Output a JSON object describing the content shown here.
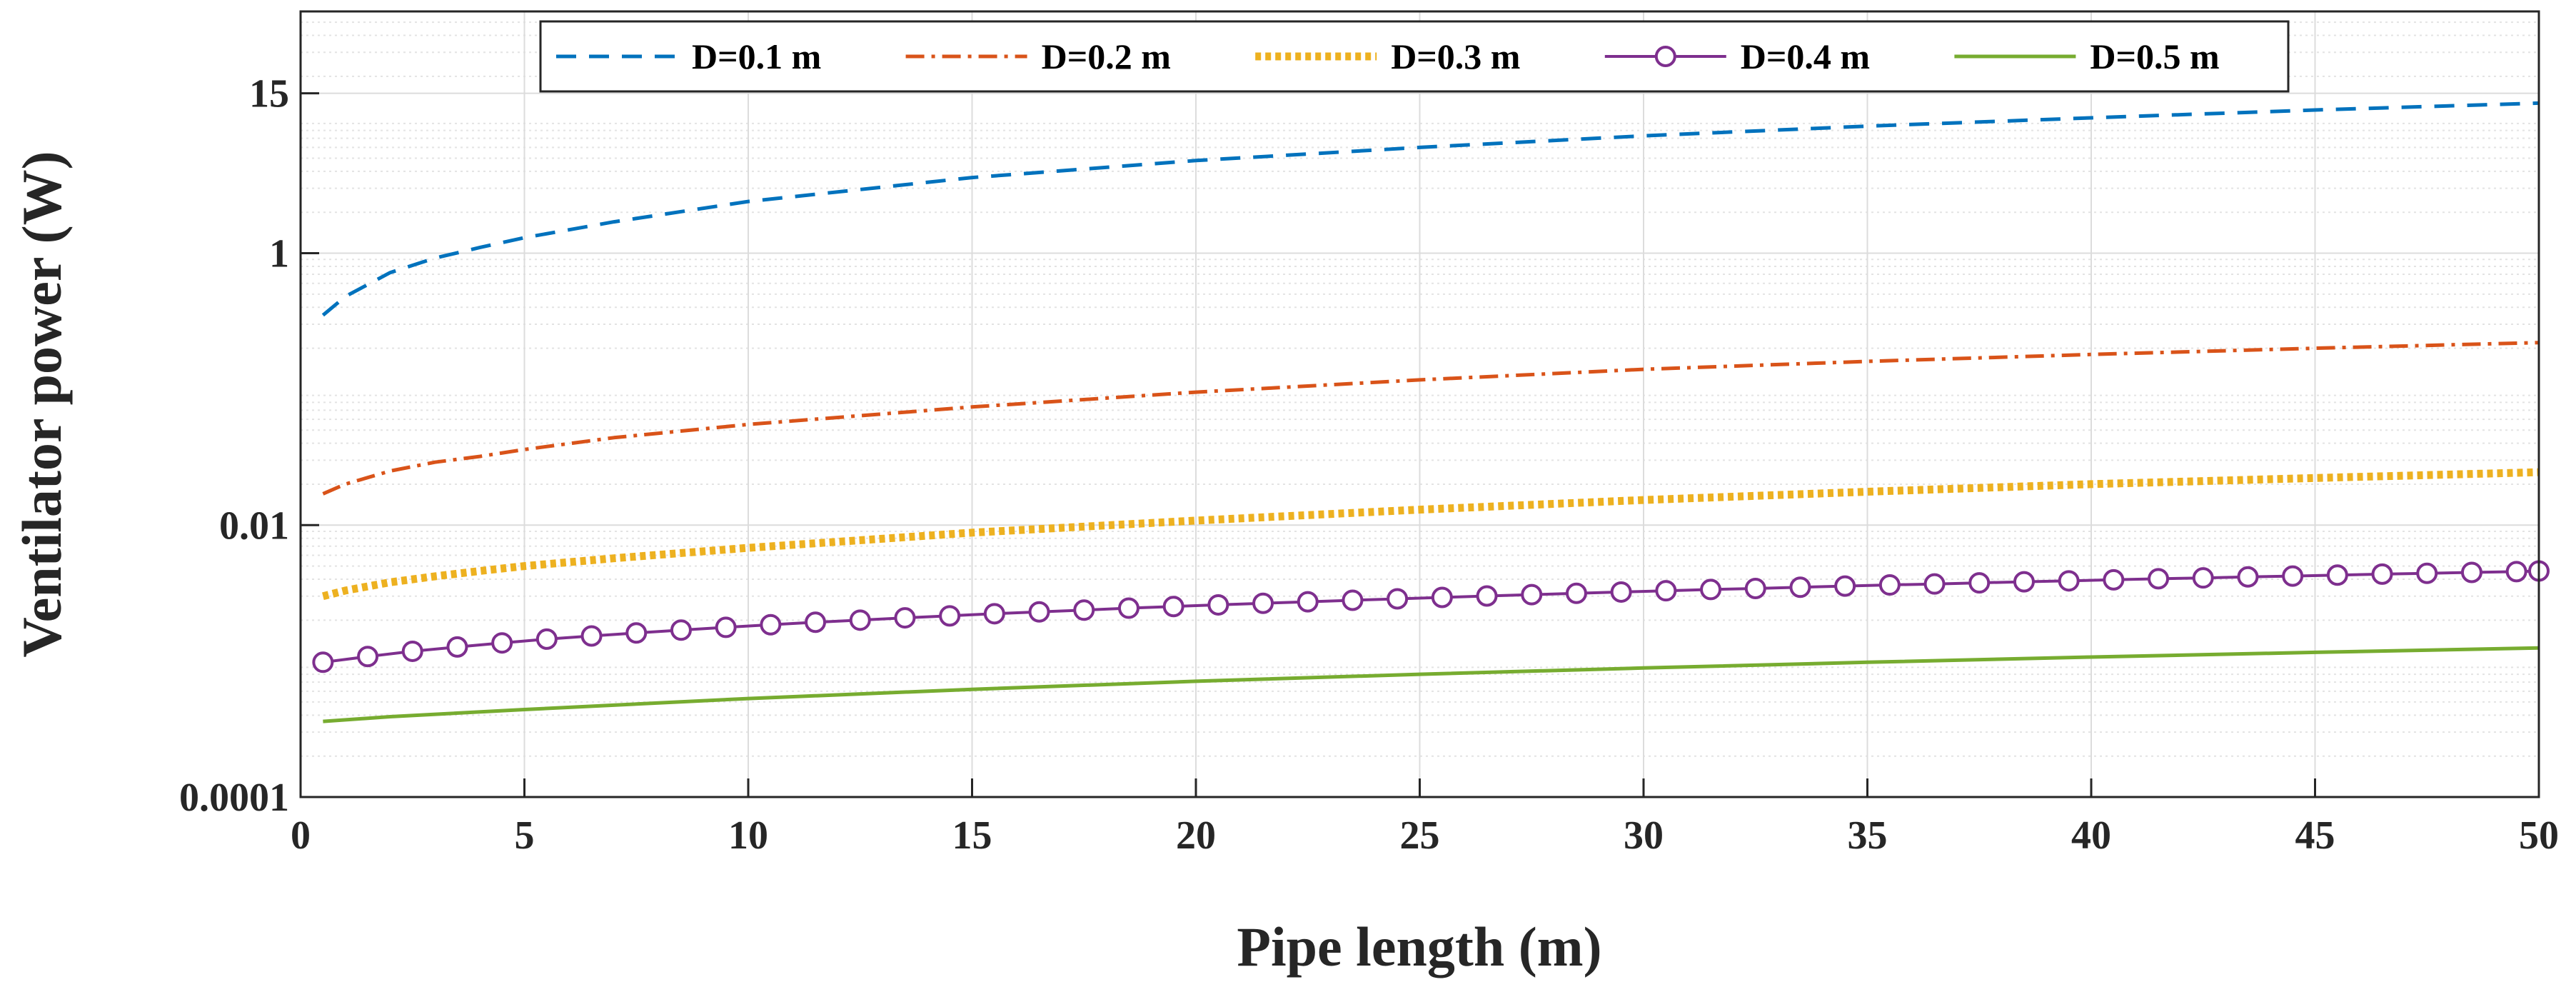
{
  "chart_data": {
    "type": "line",
    "xlabel": "Pipe length (m)",
    "ylabel": "Ventilator power (W)",
    "xlim": [
      0,
      50
    ],
    "ylim": [
      0.0001,
      60
    ],
    "yscale": "log",
    "grid": true,
    "legend_position": "top",
    "x_ticks": [
      0,
      5,
      10,
      15,
      20,
      25,
      30,
      35,
      40,
      45,
      50
    ],
    "x_tick_labels": [
      "0",
      "5",
      "10",
      "15",
      "20",
      "25",
      "30",
      "35",
      "40",
      "45",
      "50"
    ],
    "y_ticks": [
      0.0001,
      0.01,
      1,
      15
    ],
    "y_tick_labels": [
      "0.0001",
      "0.01",
      "1",
      "15"
    ],
    "series": [
      {
        "name": "D=0.1 m",
        "color": "#0072BD",
        "style": "dashed",
        "x": [
          0.5,
          1,
          2,
          3,
          4,
          5,
          7,
          10,
          15,
          20,
          25,
          30,
          35,
          40,
          45,
          50
        ],
        "values": [
          0.35,
          0.48,
          0.72,
          0.92,
          1.1,
          1.3,
          1.7,
          2.4,
          3.6,
          4.8,
          6.0,
          7.3,
          8.6,
          9.9,
          11.3,
          12.7
        ]
      },
      {
        "name": "D=0.2 m",
        "color": "#D95319",
        "style": "dashdot",
        "x": [
          0.5,
          1,
          2,
          3,
          4,
          5,
          7,
          10,
          15,
          20,
          25,
          30,
          35,
          40,
          45,
          50
        ],
        "values": [
          0.017,
          0.02,
          0.025,
          0.029,
          0.032,
          0.036,
          0.044,
          0.055,
          0.074,
          0.095,
          0.117,
          0.14,
          0.16,
          0.18,
          0.2,
          0.22
        ]
      },
      {
        "name": "D=0.3 m",
        "color": "#EDB120",
        "style": "dotted",
        "x": [
          0.5,
          1,
          2,
          3,
          4,
          5,
          7,
          10,
          15,
          20,
          25,
          30,
          35,
          40,
          45,
          50
        ],
        "values": [
          0.003,
          0.0033,
          0.0038,
          0.0042,
          0.0046,
          0.005,
          0.0057,
          0.0068,
          0.0088,
          0.0108,
          0.013,
          0.0153,
          0.0176,
          0.02,
          0.0222,
          0.0245
        ]
      },
      {
        "name": "D=0.4 m",
        "color": "#7E2F8E",
        "style": "solid-circle",
        "x": [
          0.5,
          1.5,
          2.5,
          3.5,
          4.5,
          5.5,
          6.5,
          7.5,
          8.5,
          9.5,
          10.5,
          11.5,
          12.5,
          13.5,
          14.5,
          15.5,
          16.5,
          17.5,
          18.5,
          19.5,
          20.5,
          21.5,
          22.5,
          23.5,
          24.5,
          25.5,
          26.5,
          27.5,
          28.5,
          29.5,
          30.5,
          31.5,
          32.5,
          33.5,
          34.5,
          35.5,
          36.5,
          37.5,
          38.5,
          39.5,
          40.5,
          41.5,
          42.5,
          43.5,
          44.5,
          45.5,
          46.5,
          47.5,
          48.5,
          49.5,
          50
        ],
        "values": [
          0.00098,
          0.00108,
          0.00118,
          0.00127,
          0.00136,
          0.00145,
          0.00153,
          0.00161,
          0.00169,
          0.00177,
          0.00185,
          0.00193,
          0.002,
          0.00208,
          0.00215,
          0.00223,
          0.0023,
          0.00237,
          0.00245,
          0.00252,
          0.00259,
          0.00266,
          0.00273,
          0.0028,
          0.00287,
          0.00294,
          0.00301,
          0.00308,
          0.00315,
          0.00322,
          0.00329,
          0.00336,
          0.00342,
          0.00349,
          0.00356,
          0.00363,
          0.00369,
          0.00376,
          0.00383,
          0.00389,
          0.00396,
          0.00403,
          0.00409,
          0.00416,
          0.00422,
          0.00429,
          0.00436,
          0.00442,
          0.00449,
          0.00455,
          0.0046
        ]
      },
      {
        "name": "D=0.5 m",
        "color": "#77AC30",
        "style": "solid",
        "x": [
          0.5,
          2,
          5,
          10,
          15,
          20,
          25,
          30,
          35,
          40,
          45,
          50
        ],
        "values": [
          0.00036,
          0.00039,
          0.00044,
          0.00053,
          0.00062,
          0.00071,
          0.0008,
          0.00089,
          0.00098,
          0.00107,
          0.00116,
          0.00125
        ]
      }
    ]
  }
}
